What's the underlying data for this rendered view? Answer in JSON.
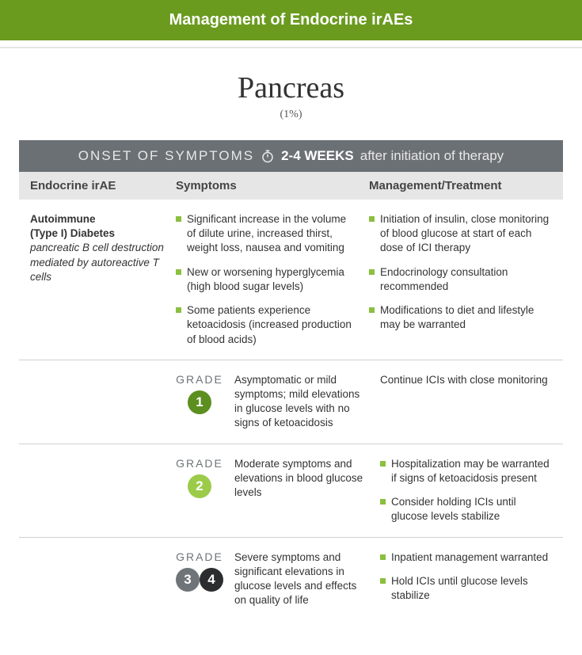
{
  "header": {
    "title": "Management of Endocrine irAEs"
  },
  "titleBlock": {
    "title": "Pancreas",
    "percent": "(1%)"
  },
  "onset": {
    "label": "ONSET OF SYMPTOMS",
    "weeks": "2-4 WEEKS",
    "after": "after initiation of therapy"
  },
  "columns": {
    "c1": "Endocrine irAE",
    "c2": "Symptoms",
    "c3": "Management/Treatment"
  },
  "irae": {
    "nameBold1": "Autoimmune",
    "nameBold2": "(Type I) Diabetes",
    "desc": "pancreatic B cell destruction mediated by autoreactive T cells",
    "symptoms": [
      "Significant increase in the volume of dilute urine, increased thirst, weight loss, nausea and vomiting",
      "New or worsening hyperglycemia (high blood sugar levels)",
      "Some patients experience ketoacidosis (increased production of blood acids)"
    ],
    "management": [
      "Initiation of insulin, close monitoring of blood glucose at start of each dose of ICI therapy",
      "Endocrinology consultation recommended",
      "Modifications to diet and lifestyle may be warranted"
    ]
  },
  "gradeWord": "GRADE",
  "grades": [
    {
      "nums": [
        {
          "n": "1",
          "color": "#5c8f1f"
        }
      ],
      "desc": "Asymptomatic or mild symptoms; mild elevations in glucose levels with no signs of ketoacidosis",
      "mgmtPlain": "Continue ICIs with close monitoring",
      "mgmtList": null
    },
    {
      "nums": [
        {
          "n": "2",
          "color": "#9ccb4a"
        }
      ],
      "desc": "Moderate symptoms and elevations in blood glucose levels",
      "mgmtPlain": null,
      "mgmtList": [
        "Hospitalization may be warranted if signs of ketoacidosis present",
        "Consider holding ICIs until glucose levels stabilize"
      ]
    },
    {
      "nums": [
        {
          "n": "3",
          "color": "#6f7478"
        },
        {
          "n": "4",
          "color": "#2b2d2e"
        }
      ],
      "desc": "Severe symptoms and significant elevations in glucose levels and effects on quality of life",
      "mgmtPlain": null,
      "mgmtList": [
        "Inpatient management warranted",
        "Hold ICIs until glucose levels stabilize"
      ]
    }
  ],
  "style": {
    "headerBg": "#6a9b1f",
    "onsetBg": "#6b7074",
    "colHeaderBg": "#e6e6e6",
    "bulletColor": "#8bbf3f"
  }
}
